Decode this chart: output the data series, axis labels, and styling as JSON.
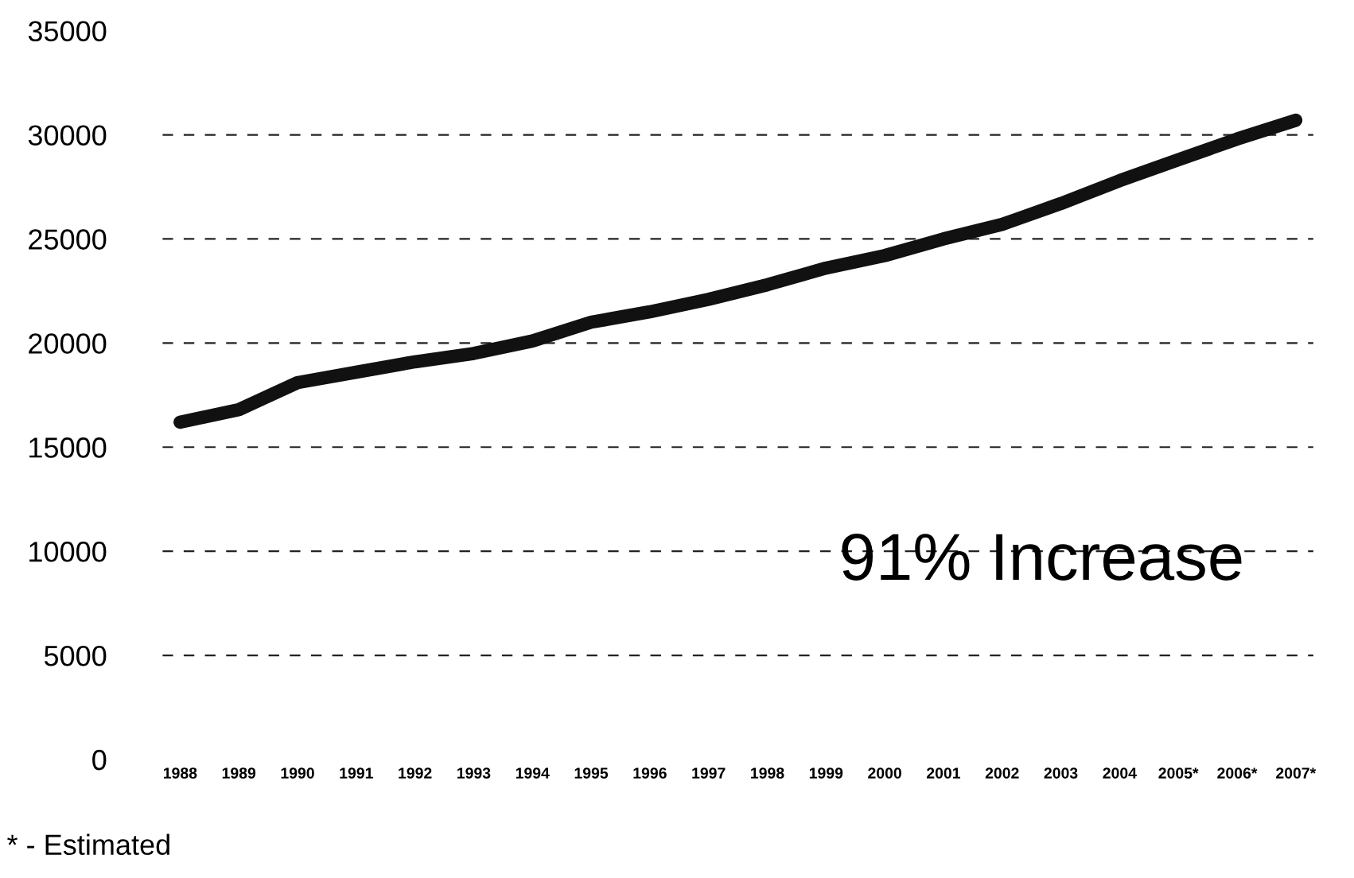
{
  "chart_data": {
    "type": "line",
    "categories": [
      "1988",
      "1989",
      "1990",
      "1991",
      "1992",
      "1993",
      "1994",
      "1995",
      "1996",
      "1997",
      "1998",
      "1999",
      "2000",
      "2001",
      "2002",
      "2003",
      "2004",
      "2005*",
      "2006*",
      "2007*"
    ],
    "series": [
      {
        "color": "#111111",
        "values": [
          16200,
          16800,
          18100,
          18600,
          19100,
          19500,
          20100,
          21000,
          21500,
          22100,
          22800,
          23600,
          24200,
          25000,
          25700,
          26700,
          27800,
          28800,
          29800,
          30700
        ]
      }
    ],
    "ylim": [
      0,
      35000
    ],
    "yticks": [
      0,
      5000,
      10000,
      15000,
      20000,
      25000,
      30000,
      35000
    ],
    "grid": "y",
    "line_style": "solid",
    "marker": "none",
    "annotations": [
      "91% Increase",
      "* - Estimated"
    ]
  }
}
